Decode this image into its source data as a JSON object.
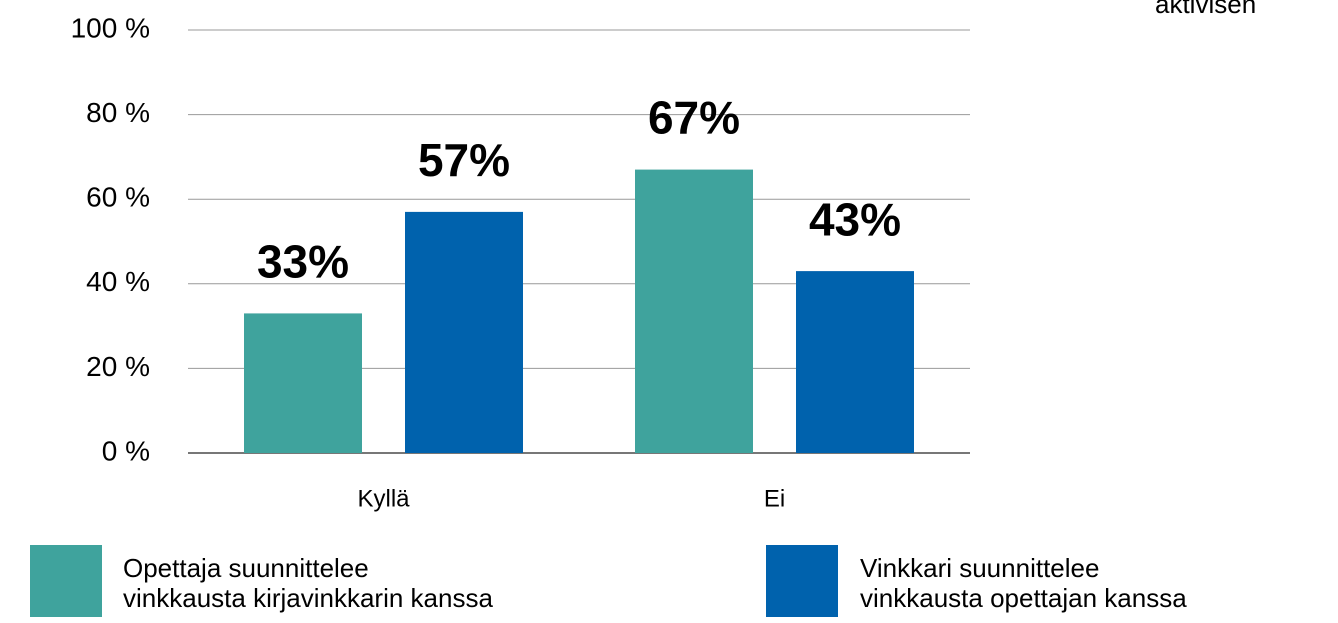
{
  "chart_data": {
    "type": "bar",
    "title": "aktivisen",
    "categories": [
      "Kyllä",
      "Ei"
    ],
    "series": [
      {
        "name": "Opettaja suunnittelee\nvinkkausta kirjavinkkarin kanssa",
        "color": "#3fa39d",
        "values": [
          33,
          67
        ],
        "value_labels": [
          "33%",
          "67%"
        ]
      },
      {
        "name": "Vinkkari suunnittelee\nvinkkausta opettajan kanssa",
        "color": "#0062ad",
        "values": [
          57,
          43
        ],
        "value_labels": [
          "57%",
          "43%"
        ]
      }
    ],
    "ylim": [
      0,
      100
    ],
    "yticks": [
      {
        "value": 0,
        "label": "0 %"
      },
      {
        "value": 20,
        "label": "20 %"
      },
      {
        "value": 40,
        "label": "40 %"
      },
      {
        "value": 60,
        "label": "60 %"
      },
      {
        "value": 80,
        "label": "80 %"
      },
      {
        "value": 100,
        "label": "100 %"
      }
    ],
    "grid": true
  }
}
